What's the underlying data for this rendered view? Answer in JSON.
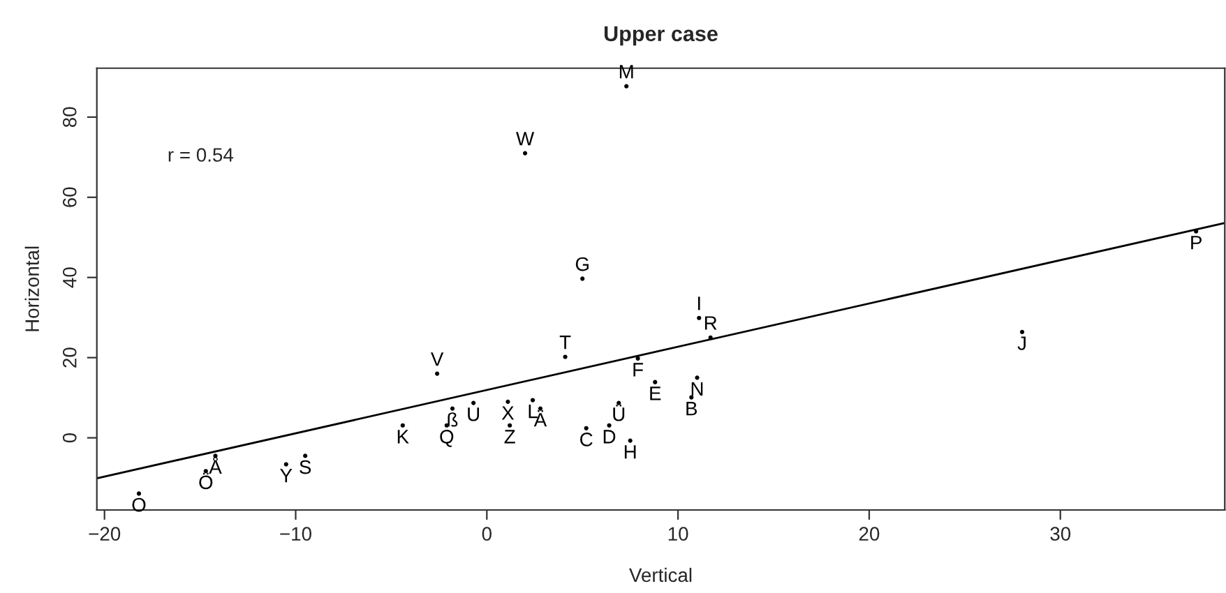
{
  "chart_data": {
    "type": "scatter",
    "title": "Upper case",
    "xlabel": "Vertical",
    "ylabel": "Horizontal",
    "annotations": [
      "r = 0.54"
    ],
    "grid": false,
    "legend": false,
    "xlim": [
      -20.4,
      38.6
    ],
    "ylim": [
      -18,
      92.2
    ],
    "xticks": [
      -20,
      -10,
      0,
      10,
      20,
      30
    ],
    "yticks": [
      0,
      20,
      40,
      60,
      80
    ],
    "series": [
      {
        "marker": "circle",
        "color": "#000000",
        "x": [
          7.3,
          2.0,
          5.0,
          37.1,
          28.0,
          11.1,
          11.7,
          4.1,
          7.9,
          -2.6,
          11.0,
          8.8,
          10.7,
          6.9,
          1.1,
          2.4,
          2.8,
          -0.7,
          -1.8,
          -4.4,
          -2.1,
          1.2,
          5.2,
          6.4,
          7.5,
          -14.2,
          -14.7,
          -10.5,
          -9.5,
          -18.2
        ],
        "values": [
          87.7,
          71.0,
          39.7,
          51.5,
          26.4,
          29.9,
          25.0,
          20.2,
          19.8,
          16.0,
          15.0,
          13.9,
          10.1,
          8.7,
          9.0,
          9.4,
          7.3,
          8.7,
          7.3,
          3.1,
          3.1,
          3.1,
          2.4,
          3.1,
          -0.7,
          -4.5,
          -8.3,
          -6.6,
          -4.5,
          -13.9
        ],
        "value_labels": [
          "M",
          "W",
          "G",
          "P",
          "J",
          "I",
          "R",
          "T",
          "F",
          "V",
          "N",
          "E",
          "B",
          "Ü",
          "X",
          "L",
          "Ä",
          "U",
          "ß",
          "K",
          "Q",
          "Z",
          "C",
          "D",
          "H",
          "Å",
          "Ö",
          "Y",
          "S",
          "O"
        ]
      },
      {
        "type": "line",
        "color": "#000000",
        "x": [
          -20.4,
          38.6
        ],
        "values": [
          -10.1,
          53.6
        ]
      }
    ]
  }
}
